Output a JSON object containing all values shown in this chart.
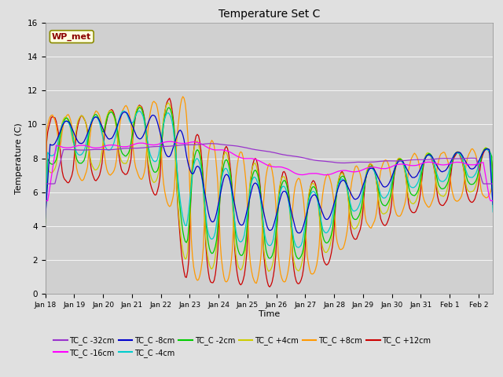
{
  "title": "Temperature Set C",
  "xlabel": "Time",
  "ylabel": "Temperature (C)",
  "ylim": [
    0,
    16
  ],
  "yticks": [
    0,
    2,
    4,
    6,
    8,
    10,
    12,
    14,
    16
  ],
  "annotation_text": "WP_met",
  "background_color": "#e0e0e0",
  "plot_bg_color": "#d0d0d0",
  "series_colors": {
    "TC_C -32cm": "#9933cc",
    "TC_C -16cm": "#ff00ff",
    "TC_C -8cm": "#0000cc",
    "TC_C -4cm": "#00cccc",
    "TC_C -2cm": "#00cc00",
    "TC_C +4cm": "#cccc00",
    "TC_C +8cm": "#ff9900",
    "TC_C +12cm": "#cc0000"
  },
  "x_tick_labels": [
    "Jan 18",
    "Jan 19",
    "Jan 20",
    "Jan 21",
    "Jan 22",
    "Jan 23",
    "Jan 24",
    "Jan 25",
    "Jan 26",
    "Jan 27",
    "Jan 28",
    "Jan 29",
    "Jan 30",
    "Jan 31",
    "Feb 1",
    "Feb 2"
  ],
  "figsize": [
    6.4,
    4.8
  ],
  "dpi": 100
}
